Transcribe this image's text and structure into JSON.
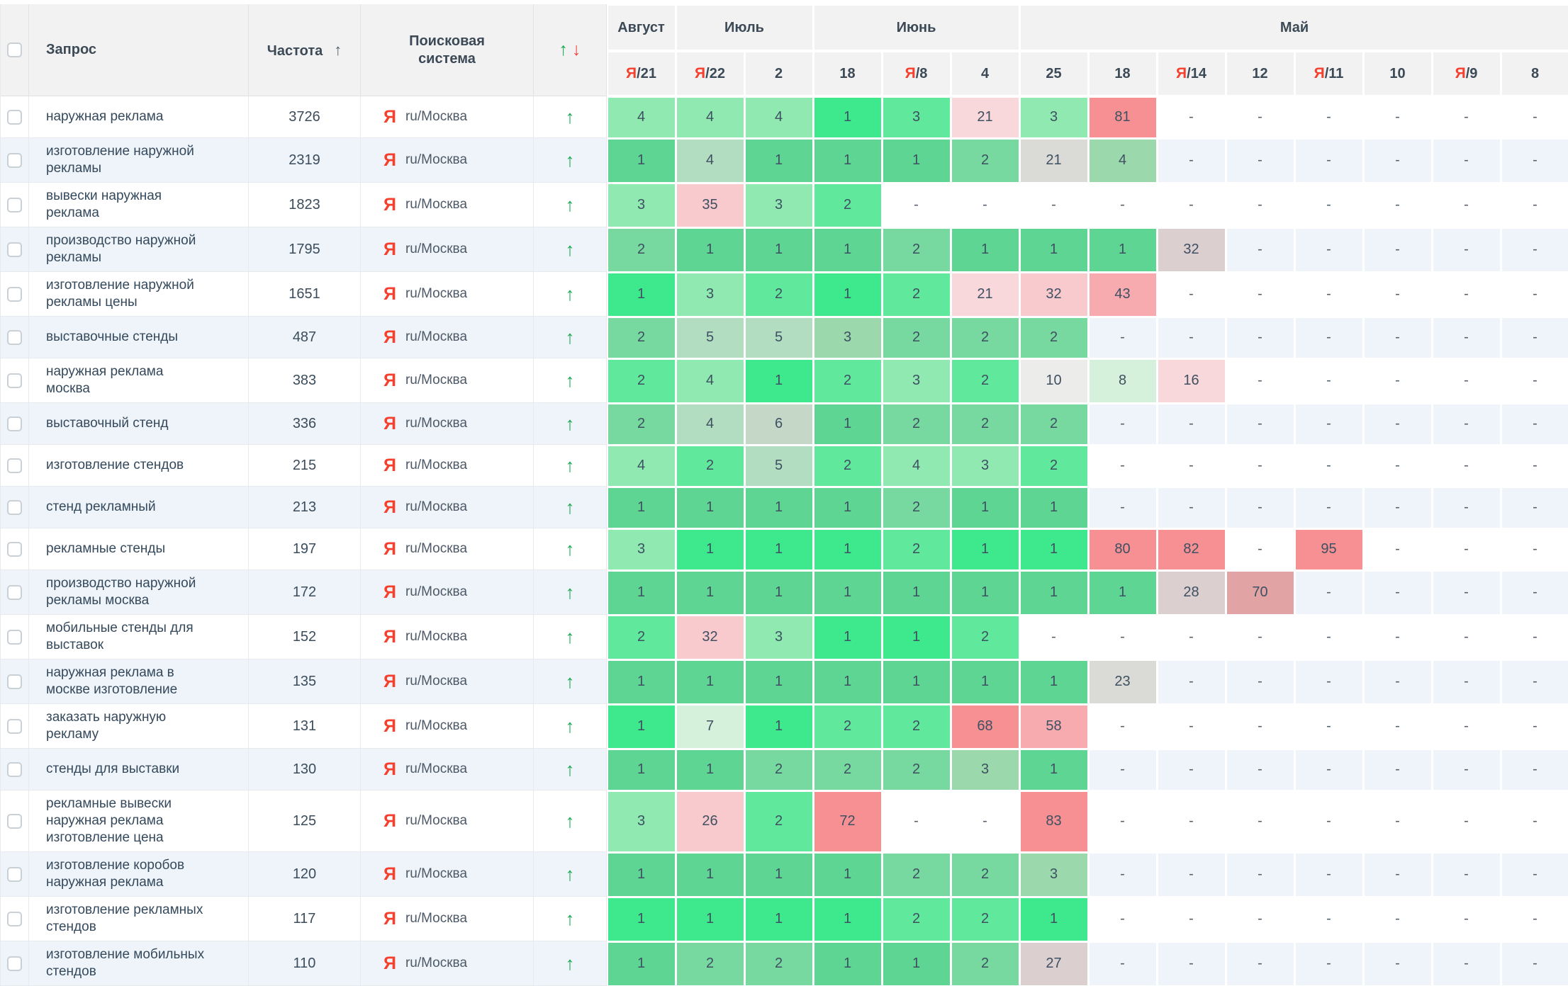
{
  "palette": {
    "g1": "#3ee98d",
    "g2": "#60e89c",
    "g3": "#8fe9b1",
    "g4": "#b3ddc0",
    "g5": "#c5d7c7",
    "g6": "#d6f1db",
    "g1m": "#5ed593",
    "g2m": "#77d99f",
    "g3m": "#9bd9ad",
    "gray": "#dadad6",
    "gray2": "#ececea",
    "gpink": "#dccfd0",
    "p1": "#f8d8da",
    "p2": "#f8c9cd",
    "p3": "#f8abae",
    "r1": "#f79093",
    "r2": "#e2a3a4",
    "accent_green": "#16a94f",
    "accent_red": "#f0443c",
    "yandex_red": "#f5402d",
    "stripe_even": "#eef4f9",
    "header_bg": "#f2f2f2"
  },
  "header": {
    "columns": {
      "query": "Запрос",
      "frequency": "Частота",
      "engine": "Поисковая система"
    },
    "sort_arrow": "↑",
    "trend_up": "↑",
    "trend_down": "↓",
    "month_groups": [
      {
        "label": "Август",
        "span": 1
      },
      {
        "label": "Июль",
        "span": 2
      },
      {
        "label": "Июнь",
        "span": 3
      },
      {
        "label": "Май",
        "span": 8
      }
    ],
    "date_columns": [
      {
        "p": "Я",
        "t": "/21"
      },
      {
        "p": "Я",
        "t": "/22"
      },
      {
        "p": "",
        "t": "2"
      },
      {
        "p": "",
        "t": "18"
      },
      {
        "p": "Я",
        "t": "/8"
      },
      {
        "p": "",
        "t": "4"
      },
      {
        "p": "",
        "t": "25"
      },
      {
        "p": "",
        "t": "18"
      },
      {
        "p": "Я",
        "t": "/14"
      },
      {
        "p": "",
        "t": "12"
      },
      {
        "p": "Я",
        "t": "/11"
      },
      {
        "p": "",
        "t": "10"
      },
      {
        "p": "Я",
        "t": "/9"
      },
      {
        "p": "",
        "t": "8"
      }
    ]
  },
  "icons": {
    "yandex": "Я"
  },
  "rows": [
    {
      "query": "наружная реклама",
      "frequency": "3726",
      "engine": "ru/Москва",
      "trend": "up",
      "cells": [
        [
          "4",
          "g3"
        ],
        [
          "4",
          "g3"
        ],
        [
          "4",
          "g3"
        ],
        [
          "1",
          "g1"
        ],
        [
          "3",
          "g2"
        ],
        [
          "21",
          "p1"
        ],
        [
          "3",
          "g3"
        ],
        [
          "81",
          "r1"
        ],
        [
          "-",
          ""
        ],
        [
          "-",
          ""
        ],
        [
          "-",
          ""
        ],
        [
          "-",
          ""
        ],
        [
          "-",
          ""
        ],
        [
          "-",
          ""
        ]
      ]
    },
    {
      "query": "изготовление наружной рекламы",
      "frequency": "2319",
      "engine": "ru/Москва",
      "trend": "up",
      "cells": [
        [
          "1",
          "g1m"
        ],
        [
          "4",
          "g4"
        ],
        [
          "1",
          "g1m"
        ],
        [
          "1",
          "g1m"
        ],
        [
          "1",
          "g1m"
        ],
        [
          "2",
          "g2m"
        ],
        [
          "21",
          "gray"
        ],
        [
          "4",
          "g3m"
        ],
        [
          "-",
          ""
        ],
        [
          "-",
          ""
        ],
        [
          "-",
          ""
        ],
        [
          "-",
          ""
        ],
        [
          "-",
          ""
        ],
        [
          "-",
          ""
        ]
      ]
    },
    {
      "query": "вывески наружная реклама",
      "frequency": "1823",
      "engine": "ru/Москва",
      "trend": "up",
      "cells": [
        [
          "3",
          "g3"
        ],
        [
          "35",
          "p2"
        ],
        [
          "3",
          "g3"
        ],
        [
          "2",
          "g2"
        ],
        [
          "-",
          ""
        ],
        [
          "-",
          ""
        ],
        [
          "-",
          ""
        ],
        [
          "-",
          ""
        ],
        [
          "-",
          ""
        ],
        [
          "-",
          ""
        ],
        [
          "-",
          ""
        ],
        [
          "-",
          ""
        ],
        [
          "-",
          ""
        ],
        [
          "-",
          ""
        ]
      ]
    },
    {
      "query": "производство наружной рекламы",
      "frequency": "1795",
      "engine": "ru/Москва",
      "trend": "up",
      "cells": [
        [
          "2",
          "g2m"
        ],
        [
          "1",
          "g1m"
        ],
        [
          "1",
          "g1m"
        ],
        [
          "1",
          "g1m"
        ],
        [
          "2",
          "g2m"
        ],
        [
          "1",
          "g1m"
        ],
        [
          "1",
          "g1m"
        ],
        [
          "1",
          "g1m"
        ],
        [
          "32",
          "gpink"
        ],
        [
          "-",
          ""
        ],
        [
          "-",
          ""
        ],
        [
          "-",
          ""
        ],
        [
          "-",
          ""
        ],
        [
          "-",
          ""
        ]
      ]
    },
    {
      "query": "изготовление наружной рекламы цены",
      "frequency": "1651",
      "engine": "ru/Москва",
      "trend": "up",
      "cells": [
        [
          "1",
          "g1"
        ],
        [
          "3",
          "g3"
        ],
        [
          "2",
          "g2"
        ],
        [
          "1",
          "g1"
        ],
        [
          "2",
          "g2"
        ],
        [
          "21",
          "p1"
        ],
        [
          "32",
          "p2"
        ],
        [
          "43",
          "p3"
        ],
        [
          "-",
          ""
        ],
        [
          "-",
          ""
        ],
        [
          "-",
          ""
        ],
        [
          "-",
          ""
        ],
        [
          "-",
          ""
        ],
        [
          "-",
          ""
        ]
      ]
    },
    {
      "query": "выставочные стенды",
      "frequency": "487",
      "engine": "ru/Москва",
      "trend": "up",
      "cells": [
        [
          "2",
          "g2m"
        ],
        [
          "5",
          "g4"
        ],
        [
          "5",
          "g4"
        ],
        [
          "3",
          "g3m"
        ],
        [
          "2",
          "g2m"
        ],
        [
          "2",
          "g2m"
        ],
        [
          "2",
          "g2m"
        ],
        [
          "-",
          ""
        ],
        [
          "-",
          ""
        ],
        [
          "-",
          ""
        ],
        [
          "-",
          ""
        ],
        [
          "-",
          ""
        ],
        [
          "-",
          ""
        ],
        [
          "-",
          ""
        ]
      ]
    },
    {
      "query": "наружная реклама москва",
      "frequency": "383",
      "engine": "ru/Москва",
      "trend": "up",
      "cells": [
        [
          "2",
          "g2"
        ],
        [
          "4",
          "g3"
        ],
        [
          "1",
          "g1"
        ],
        [
          "2",
          "g2"
        ],
        [
          "3",
          "g3"
        ],
        [
          "2",
          "g2"
        ],
        [
          "10",
          "gray2"
        ],
        [
          "8",
          "g6"
        ],
        [
          "16",
          "p1"
        ],
        [
          "-",
          ""
        ],
        [
          "-",
          ""
        ],
        [
          "-",
          ""
        ],
        [
          "-",
          ""
        ],
        [
          "-",
          ""
        ]
      ]
    },
    {
      "query": "выставочный стенд",
      "frequency": "336",
      "engine": "ru/Москва",
      "trend": "up",
      "cells": [
        [
          "2",
          "g2m"
        ],
        [
          "4",
          "g4"
        ],
        [
          "6",
          "g5"
        ],
        [
          "1",
          "g1m"
        ],
        [
          "2",
          "g2m"
        ],
        [
          "2",
          "g2m"
        ],
        [
          "2",
          "g2m"
        ],
        [
          "-",
          ""
        ],
        [
          "-",
          ""
        ],
        [
          "-",
          ""
        ],
        [
          "-",
          ""
        ],
        [
          "-",
          ""
        ],
        [
          "-",
          ""
        ],
        [
          "-",
          ""
        ]
      ]
    },
    {
      "query": "изготовление стендов",
      "frequency": "215",
      "engine": "ru/Москва",
      "trend": "up",
      "cells": [
        [
          "4",
          "g3"
        ],
        [
          "2",
          "g2"
        ],
        [
          "5",
          "g4"
        ],
        [
          "2",
          "g2"
        ],
        [
          "4",
          "g3"
        ],
        [
          "3",
          "g3"
        ],
        [
          "2",
          "g2"
        ],
        [
          "-",
          ""
        ],
        [
          "-",
          ""
        ],
        [
          "-",
          ""
        ],
        [
          "-",
          ""
        ],
        [
          "-",
          ""
        ],
        [
          "-",
          ""
        ],
        [
          "-",
          ""
        ]
      ]
    },
    {
      "query": "стенд рекламный",
      "frequency": "213",
      "engine": "ru/Москва",
      "trend": "up",
      "cells": [
        [
          "1",
          "g1m"
        ],
        [
          "1",
          "g1m"
        ],
        [
          "1",
          "g1m"
        ],
        [
          "1",
          "g1m"
        ],
        [
          "2",
          "g2m"
        ],
        [
          "1",
          "g1m"
        ],
        [
          "1",
          "g1m"
        ],
        [
          "-",
          ""
        ],
        [
          "-",
          ""
        ],
        [
          "-",
          ""
        ],
        [
          "-",
          ""
        ],
        [
          "-",
          ""
        ],
        [
          "-",
          ""
        ],
        [
          "-",
          ""
        ]
      ]
    },
    {
      "query": "рекламные стенды",
      "frequency": "197",
      "engine": "ru/Москва",
      "trend": "up",
      "cells": [
        [
          "3",
          "g3"
        ],
        [
          "1",
          "g1"
        ],
        [
          "1",
          "g1"
        ],
        [
          "1",
          "g1"
        ],
        [
          "2",
          "g2"
        ],
        [
          "1",
          "g1"
        ],
        [
          "1",
          "g1"
        ],
        [
          "80",
          "r1"
        ],
        [
          "82",
          "r1"
        ],
        [
          "-",
          ""
        ],
        [
          "95",
          "r1"
        ],
        [
          "-",
          ""
        ],
        [
          "-",
          ""
        ],
        [
          "-",
          ""
        ]
      ]
    },
    {
      "query": "производство наружной рекламы москва",
      "frequency": "172",
      "engine": "ru/Москва",
      "trend": "up",
      "cells": [
        [
          "1",
          "g1m"
        ],
        [
          "1",
          "g1m"
        ],
        [
          "1",
          "g1m"
        ],
        [
          "1",
          "g1m"
        ],
        [
          "1",
          "g1m"
        ],
        [
          "1",
          "g1m"
        ],
        [
          "1",
          "g1m"
        ],
        [
          "1",
          "g1m"
        ],
        [
          "28",
          "gpink"
        ],
        [
          "70",
          "r2"
        ],
        [
          "-",
          ""
        ],
        [
          "-",
          ""
        ],
        [
          "-",
          ""
        ],
        [
          "-",
          ""
        ]
      ]
    },
    {
      "query": "мобильные стенды для выставок",
      "frequency": "152",
      "engine": "ru/Москва",
      "trend": "up",
      "cells": [
        [
          "2",
          "g2"
        ],
        [
          "32",
          "p2"
        ],
        [
          "3",
          "g3"
        ],
        [
          "1",
          "g1"
        ],
        [
          "1",
          "g1"
        ],
        [
          "2",
          "g2"
        ],
        [
          "-",
          ""
        ],
        [
          "-",
          ""
        ],
        [
          "-",
          ""
        ],
        [
          "-",
          ""
        ],
        [
          "-",
          ""
        ],
        [
          "-",
          ""
        ],
        [
          "-",
          ""
        ],
        [
          "-",
          ""
        ]
      ]
    },
    {
      "query": "наружная реклама в москве изготовление",
      "frequency": "135",
      "engine": "ru/Москва",
      "trend": "up",
      "cells": [
        [
          "1",
          "g1m"
        ],
        [
          "1",
          "g1m"
        ],
        [
          "1",
          "g1m"
        ],
        [
          "1",
          "g1m"
        ],
        [
          "1",
          "g1m"
        ],
        [
          "1",
          "g1m"
        ],
        [
          "1",
          "g1m"
        ],
        [
          "23",
          "gray"
        ],
        [
          "-",
          ""
        ],
        [
          "-",
          ""
        ],
        [
          "-",
          ""
        ],
        [
          "-",
          ""
        ],
        [
          "-",
          ""
        ],
        [
          "-",
          ""
        ]
      ]
    },
    {
      "query": "заказать наружную рекламу",
      "frequency": "131",
      "engine": "ru/Москва",
      "trend": "up",
      "cells": [
        [
          "1",
          "g1"
        ],
        [
          "7",
          "g6"
        ],
        [
          "1",
          "g1"
        ],
        [
          "2",
          "g2"
        ],
        [
          "2",
          "g2"
        ],
        [
          "68",
          "r1"
        ],
        [
          "58",
          "p3"
        ],
        [
          "-",
          ""
        ],
        [
          "-",
          ""
        ],
        [
          "-",
          ""
        ],
        [
          "-",
          ""
        ],
        [
          "-",
          ""
        ],
        [
          "-",
          ""
        ],
        [
          "-",
          ""
        ]
      ]
    },
    {
      "query": "стенды для выставки",
      "frequency": "130",
      "engine": "ru/Москва",
      "trend": "up",
      "cells": [
        [
          "1",
          "g1m"
        ],
        [
          "1",
          "g1m"
        ],
        [
          "2",
          "g2m"
        ],
        [
          "2",
          "g2m"
        ],
        [
          "2",
          "g2m"
        ],
        [
          "3",
          "g3m"
        ],
        [
          "1",
          "g1m"
        ],
        [
          "-",
          ""
        ],
        [
          "-",
          ""
        ],
        [
          "-",
          ""
        ],
        [
          "-",
          ""
        ],
        [
          "-",
          ""
        ],
        [
          "-",
          ""
        ],
        [
          "-",
          ""
        ]
      ]
    },
    {
      "query": "рекламные вывески наружная реклама изготовление цена",
      "frequency": "125",
      "engine": "ru/Москва",
      "trend": "up",
      "cells": [
        [
          "3",
          "g3"
        ],
        [
          "26",
          "p2"
        ],
        [
          "2",
          "g2"
        ],
        [
          "72",
          "r1"
        ],
        [
          "-",
          ""
        ],
        [
          "-",
          ""
        ],
        [
          "83",
          "r1"
        ],
        [
          "-",
          ""
        ],
        [
          "-",
          ""
        ],
        [
          "-",
          ""
        ],
        [
          "-",
          ""
        ],
        [
          "-",
          ""
        ],
        [
          "-",
          ""
        ],
        [
          "-",
          ""
        ]
      ]
    },
    {
      "query": "изготовление коробов наружная реклама",
      "frequency": "120",
      "engine": "ru/Москва",
      "trend": "up",
      "cells": [
        [
          "1",
          "g1m"
        ],
        [
          "1",
          "g1m"
        ],
        [
          "1",
          "g1m"
        ],
        [
          "1",
          "g1m"
        ],
        [
          "2",
          "g2m"
        ],
        [
          "2",
          "g2m"
        ],
        [
          "3",
          "g3m"
        ],
        [
          "-",
          ""
        ],
        [
          "-",
          ""
        ],
        [
          "-",
          ""
        ],
        [
          "-",
          ""
        ],
        [
          "-",
          ""
        ],
        [
          "-",
          ""
        ],
        [
          "-",
          ""
        ]
      ]
    },
    {
      "query": "изготовление рекламных стендов",
      "frequency": "117",
      "engine": "ru/Москва",
      "trend": "up",
      "cells": [
        [
          "1",
          "g1"
        ],
        [
          "1",
          "g1"
        ],
        [
          "1",
          "g1"
        ],
        [
          "1",
          "g1"
        ],
        [
          "2",
          "g2"
        ],
        [
          "2",
          "g2"
        ],
        [
          "1",
          "g1"
        ],
        [
          "-",
          ""
        ],
        [
          "-",
          ""
        ],
        [
          "-",
          ""
        ],
        [
          "-",
          ""
        ],
        [
          "-",
          ""
        ],
        [
          "-",
          ""
        ],
        [
          "-",
          ""
        ]
      ]
    },
    {
      "query": "изготовление мобильных стендов",
      "frequency": "110",
      "engine": "ru/Москва",
      "trend": "up",
      "cells": [
        [
          "1",
          "g1m"
        ],
        [
          "2",
          "g2m"
        ],
        [
          "2",
          "g2m"
        ],
        [
          "1",
          "g1m"
        ],
        [
          "1",
          "g1m"
        ],
        [
          "2",
          "g2m"
        ],
        [
          "27",
          "gpink"
        ],
        [
          "-",
          ""
        ],
        [
          "-",
          ""
        ],
        [
          "-",
          ""
        ],
        [
          "-",
          ""
        ],
        [
          "-",
          ""
        ],
        [
          "-",
          ""
        ],
        [
          "-",
          ""
        ]
      ]
    }
  ]
}
